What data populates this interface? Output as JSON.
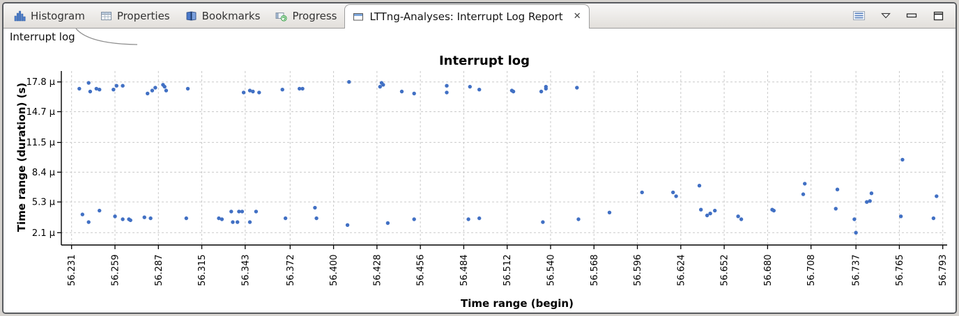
{
  "window": {
    "tabs": [
      {
        "label": "Histogram",
        "icon": "histogram-icon",
        "active": false
      },
      {
        "label": "Properties",
        "icon": "properties-icon",
        "active": false
      },
      {
        "label": "Bookmarks",
        "icon": "bookmarks-icon",
        "active": false
      },
      {
        "label": "Progress",
        "icon": "progress-icon",
        "active": false
      },
      {
        "label": "LTTng-Analyses: Interrupt Log Report",
        "icon": "report-icon",
        "active": true,
        "close_glyph": "✕"
      }
    ],
    "toolbar_icons": [
      "view-menu-icon",
      "dropdown-arrow-icon",
      "minimize-icon",
      "maximize-icon"
    ]
  },
  "subtab": {
    "label": "Interrupt log"
  },
  "chart_data": {
    "type": "scatter",
    "title": "Interrupt log",
    "xlabel": "Time range (begin)",
    "ylabel": "Time range (duration) (s)",
    "legend": null,
    "grid": true,
    "marker_color": "#4170c4",
    "x_tick_labels": [
      "56.231",
      "56.259",
      "56.287",
      "56.315",
      "56.343",
      "56.372",
      "56.400",
      "56.428",
      "56.456",
      "56.484",
      "56.512",
      "56.540",
      "56.568",
      "56.596",
      "56.624",
      "56.652",
      "56.680",
      "56.708",
      "56.737",
      "56.765",
      "56.793"
    ],
    "x_tick_values": [
      56.231,
      56.259,
      56.287,
      56.315,
      56.343,
      56.372,
      56.4,
      56.428,
      56.456,
      56.484,
      56.512,
      56.54,
      56.568,
      56.596,
      56.624,
      56.652,
      56.68,
      56.708,
      56.737,
      56.765,
      56.793
    ],
    "y_tick_labels": [
      "2.1 µ",
      "5.3 µ",
      "8.4 µ",
      "11.5 µ",
      "14.7 µ",
      "17.8 µ"
    ],
    "y_tick_values_us": [
      2.1,
      5.3,
      8.4,
      11.5,
      14.7,
      17.8
    ],
    "xlim": [
      56.217,
      56.807
    ],
    "ylim_us": [
      0.4,
      19.2
    ],
    "points_x_y_us": [
      [
        56.236,
        17.1
      ],
      [
        56.242,
        17.7
      ],
      [
        56.243,
        16.8
      ],
      [
        56.247,
        17.1
      ],
      [
        56.249,
        17.0
      ],
      [
        56.258,
        17.0
      ],
      [
        56.26,
        17.4
      ],
      [
        56.264,
        17.4
      ],
      [
        56.28,
        16.6
      ],
      [
        56.283,
        16.9
      ],
      [
        56.285,
        17.2
      ],
      [
        56.29,
        17.5
      ],
      [
        56.291,
        17.3
      ],
      [
        56.292,
        16.9
      ],
      [
        56.306,
        17.1
      ],
      [
        56.342,
        16.7
      ],
      [
        56.346,
        16.9
      ],
      [
        56.348,
        16.8
      ],
      [
        56.352,
        16.7
      ],
      [
        56.367,
        17.0
      ],
      [
        56.378,
        17.1
      ],
      [
        56.38,
        17.1
      ],
      [
        56.41,
        17.8
      ],
      [
        56.43,
        17.3
      ],
      [
        56.431,
        17.7
      ],
      [
        56.432,
        17.5
      ],
      [
        56.444,
        16.8
      ],
      [
        56.452,
        16.6
      ],
      [
        56.473,
        17.4
      ],
      [
        56.473,
        16.7
      ],
      [
        56.488,
        17.3
      ],
      [
        56.494,
        17.0
      ],
      [
        56.515,
        16.9
      ],
      [
        56.516,
        16.8
      ],
      [
        56.534,
        16.8
      ],
      [
        56.537,
        17.1
      ],
      [
        56.537,
        17.3
      ],
      [
        56.557,
        17.2
      ],
      [
        56.238,
        4.0
      ],
      [
        56.242,
        3.2
      ],
      [
        56.249,
        4.4
      ],
      [
        56.259,
        3.8
      ],
      [
        56.264,
        3.5
      ],
      [
        56.268,
        3.5
      ],
      [
        56.269,
        3.4
      ],
      [
        56.278,
        3.7
      ],
      [
        56.282,
        3.6
      ],
      [
        56.305,
        3.6
      ],
      [
        56.326,
        3.6
      ],
      [
        56.328,
        3.5
      ],
      [
        56.334,
        4.3
      ],
      [
        56.335,
        3.2
      ],
      [
        56.338,
        3.2
      ],
      [
        56.339,
        4.3
      ],
      [
        56.341,
        4.3
      ],
      [
        56.346,
        3.2
      ],
      [
        56.35,
        4.3
      ],
      [
        56.369,
        3.6
      ],
      [
        56.388,
        4.7
      ],
      [
        56.389,
        3.6
      ],
      [
        56.409,
        2.9
      ],
      [
        56.435,
        3.1
      ],
      [
        56.452,
        3.5
      ],
      [
        56.487,
        3.5
      ],
      [
        56.494,
        3.6
      ],
      [
        56.535,
        3.2
      ],
      [
        56.558,
        3.5
      ],
      [
        56.578,
        4.2
      ],
      [
        56.599,
        6.3
      ],
      [
        56.619,
        6.3
      ],
      [
        56.621,
        5.9
      ],
      [
        56.636,
        7.0
      ],
      [
        56.637,
        4.5
      ],
      [
        56.641,
        3.9
      ],
      [
        56.643,
        4.1
      ],
      [
        56.646,
        4.4
      ],
      [
        56.661,
        3.8
      ],
      [
        56.663,
        3.5
      ],
      [
        56.683,
        4.5
      ],
      [
        56.684,
        4.4
      ],
      [
        56.703,
        6.1
      ],
      [
        56.704,
        7.2
      ],
      [
        56.724,
        4.6
      ],
      [
        56.725,
        6.6
      ],
      [
        56.736,
        3.5
      ],
      [
        56.737,
        2.1
      ],
      [
        56.744,
        5.3
      ],
      [
        56.746,
        5.4
      ],
      [
        56.747,
        6.2
      ],
      [
        56.766,
        3.8
      ],
      [
        56.767,
        9.7
      ],
      [
        56.787,
        3.6
      ],
      [
        56.789,
        5.9
      ]
    ]
  }
}
